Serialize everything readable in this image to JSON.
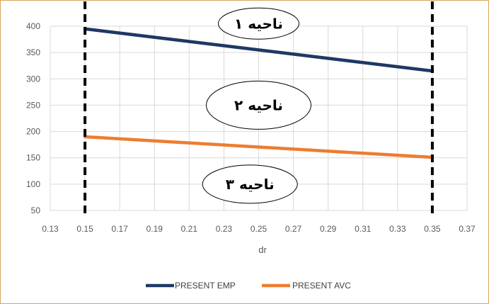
{
  "chart_data": {
    "type": "line",
    "title": "",
    "xlabel": "dr",
    "ylabel": "",
    "xlim": [
      0.13,
      0.37
    ],
    "ylim": [
      50,
      400
    ],
    "x_ticks": [
      0.13,
      0.15,
      0.17,
      0.19,
      0.21,
      0.23,
      0.25,
      0.27,
      0.29,
      0.31,
      0.33,
      0.35,
      0.37
    ],
    "x_tick_labels": [
      "0.13",
      "0.15",
      "0.17",
      "0.19",
      "0.21",
      "0.23",
      "0.25",
      "0.27",
      "0.29",
      "0.31",
      "0.33",
      "0.35",
      "0.37"
    ],
    "y_ticks": [
      50,
      100,
      150,
      200,
      250,
      300,
      350,
      400
    ],
    "y_tick_labels": [
      "50",
      "100",
      "150",
      "200",
      "250",
      "300",
      "350",
      "400"
    ],
    "grid": true,
    "legend_position": "bottom",
    "series": [
      {
        "name": "PRESENT EMP",
        "color": "#1f3864",
        "x": [
          0.15,
          0.35
        ],
        "y": [
          395,
          315
        ]
      },
      {
        "name": "PRESENT AVC",
        "color": "#ed7d31",
        "x": [
          0.15,
          0.35
        ],
        "y": [
          190,
          151
        ]
      }
    ],
    "vertical_markers": [
      0.15,
      0.35
    ],
    "annotations": [
      {
        "text": "ناحیه ۱",
        "x": 0.25,
        "y": 405
      },
      {
        "text": "ناحیه ۲",
        "x": 0.25,
        "y": 250
      },
      {
        "text": "ناحیه ۳",
        "x": 0.245,
        "y": 100
      }
    ]
  }
}
